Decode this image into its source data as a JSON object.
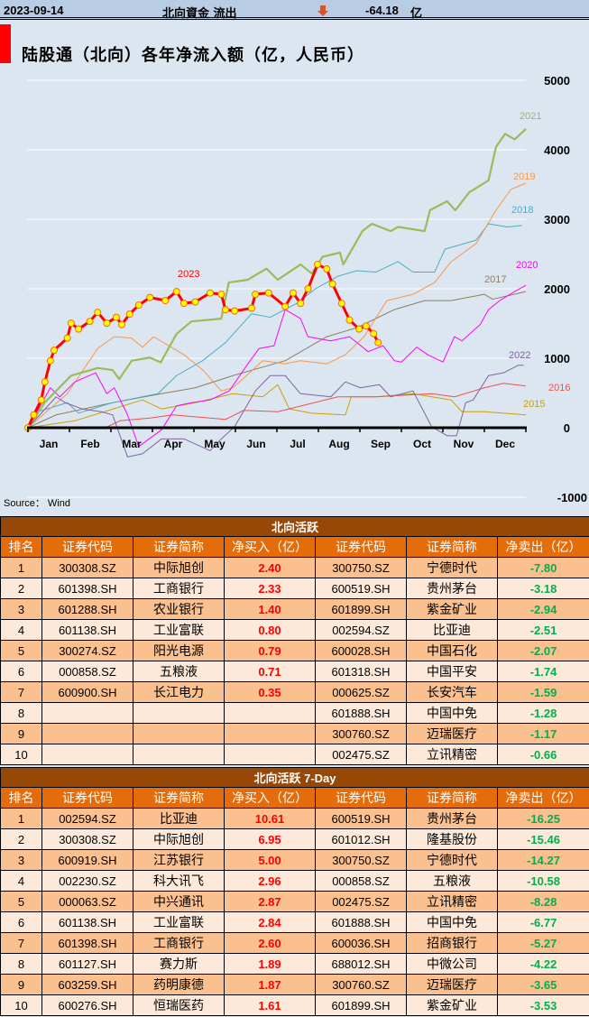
{
  "header": {
    "date": "2023-09-14",
    "label": "北向資金 流出",
    "value": "-64.18",
    "unit": "亿",
    "direction_icon": "down-arrow-icon"
  },
  "chart_data": {
    "type": "line",
    "title": "陆股通（北向）各年净流入额（亿，人民币）",
    "source": "Source： Wind",
    "ylim": [
      -1000,
      5000
    ],
    "yticks": [
      "5000",
      "4000",
      "3000",
      "2000",
      "1000",
      "0",
      "-1000"
    ],
    "ytick_values": [
      5000,
      4000,
      3000,
      2000,
      1000,
      0,
      -1000
    ],
    "xticks": [
      "Jan",
      "Feb",
      "Mar",
      "Apr",
      "May",
      "Jun",
      "Jul",
      "Aug",
      "Sep",
      "Oct",
      "Nov",
      "Dec"
    ],
    "xunit": "months elapsed (0-12)",
    "grid": true,
    "series": [
      {
        "name": "2015",
        "color": "#c9a100",
        "points": [
          [
            0,
            0
          ],
          [
            1.13,
            100
          ],
          [
            2.76,
            400
          ],
          [
            3.22,
            270
          ],
          [
            4.03,
            360
          ],
          [
            4.94,
            490
          ],
          [
            5.66,
            445
          ],
          [
            6.02,
            620
          ],
          [
            6.3,
            270
          ],
          [
            6.84,
            210
          ],
          [
            7.65,
            185
          ],
          [
            7.79,
            445
          ],
          [
            8.38,
            445
          ],
          [
            9.28,
            490
          ],
          [
            10.2,
            400
          ],
          [
            10.46,
            230
          ],
          [
            11,
            230
          ],
          [
            12,
            185
          ]
        ]
      },
      {
        "name": "2016",
        "color": "#f05050",
        "points": [
          [
            0,
            0
          ],
          [
            1.86,
            0
          ],
          [
            2.22,
            100
          ],
          [
            2.94,
            140
          ],
          [
            3.49,
            185
          ],
          [
            4.76,
            120
          ],
          [
            5.2,
            250
          ],
          [
            6.02,
            230
          ],
          [
            7.47,
            445
          ],
          [
            8.38,
            445
          ],
          [
            9.73,
            490
          ],
          [
            10.28,
            445
          ],
          [
            11,
            575
          ],
          [
            11.46,
            640
          ],
          [
            12,
            600
          ]
        ]
      },
      {
        "name": "2017",
        "color": "#8c7f5c",
        "points": [
          [
            0,
            0
          ],
          [
            0.68,
            185
          ],
          [
            2.04,
            360
          ],
          [
            3.22,
            490
          ],
          [
            4.03,
            575
          ],
          [
            4.94,
            750
          ],
          [
            6.2,
            965
          ],
          [
            7.2,
            1310
          ],
          [
            7.93,
            1440
          ],
          [
            8.83,
            1700
          ],
          [
            9.56,
            1830
          ],
          [
            10.2,
            1830
          ],
          [
            11,
            1920
          ],
          [
            11.2,
            1850
          ],
          [
            12,
            1960
          ]
        ]
      },
      {
        "name": "2018",
        "color": "#4bacc6",
        "points": [
          [
            0,
            0
          ],
          [
            0.23,
            230
          ],
          [
            0.95,
            360
          ],
          [
            1.22,
            210
          ],
          [
            2.04,
            360
          ],
          [
            3.13,
            490
          ],
          [
            3.58,
            750
          ],
          [
            4.21,
            965
          ],
          [
            4.76,
            1225
          ],
          [
            5.39,
            1640
          ],
          [
            5.84,
            1590
          ],
          [
            6.48,
            1790
          ],
          [
            6.93,
            2000
          ],
          [
            7.47,
            2180
          ],
          [
            7.93,
            2260
          ],
          [
            8.38,
            2240
          ],
          [
            8.92,
            2390
          ],
          [
            9.28,
            2240
          ],
          [
            9.8,
            2240
          ],
          [
            10.05,
            2570
          ],
          [
            10.8,
            2700
          ],
          [
            11.1,
            2935
          ],
          [
            11.55,
            2890
          ],
          [
            11.9,
            2910
          ]
        ]
      },
      {
        "name": "2019",
        "color": "#f79646",
        "points": [
          [
            0,
            0
          ],
          [
            0.95,
            490
          ],
          [
            1.68,
            1140
          ],
          [
            2.08,
            1310
          ],
          [
            2.49,
            1290
          ],
          [
            2.76,
            1160
          ],
          [
            3.03,
            1310
          ],
          [
            3.76,
            1050
          ],
          [
            4.21,
            835
          ],
          [
            4.66,
            530
          ],
          [
            4.94,
            575
          ],
          [
            5.66,
            965
          ],
          [
            6.2,
            920
          ],
          [
            6.57,
            965
          ],
          [
            7.2,
            920
          ],
          [
            7.65,
            1050
          ],
          [
            8.1,
            1310
          ],
          [
            8.65,
            1830
          ],
          [
            9.28,
            1920
          ],
          [
            9.8,
            2090
          ],
          [
            10.2,
            2390
          ],
          [
            10.8,
            2650
          ],
          [
            11.28,
            3130
          ],
          [
            11.64,
            3430
          ],
          [
            12,
            3520
          ]
        ]
      },
      {
        "name": "2020",
        "color": "#ff00ff",
        "points": [
          [
            0,
            0
          ],
          [
            0.54,
            575
          ],
          [
            0.77,
            445
          ],
          [
            1.13,
            660
          ],
          [
            1.63,
            790
          ],
          [
            1.9,
            490
          ],
          [
            2.08,
            575
          ],
          [
            2.4,
            185
          ],
          [
            2.67,
            -270
          ],
          [
            3.22,
            -30
          ],
          [
            3.58,
            315
          ],
          [
            3.94,
            360
          ],
          [
            4.39,
            400
          ],
          [
            4.85,
            530
          ],
          [
            5.3,
            920
          ],
          [
            5.57,
            1140
          ],
          [
            5.93,
            1180
          ],
          [
            6.2,
            1700
          ],
          [
            6.57,
            1570
          ],
          [
            6.75,
            1310
          ],
          [
            7.3,
            1250
          ],
          [
            7.75,
            1310
          ],
          [
            8.2,
            1095
          ],
          [
            8.56,
            1180
          ],
          [
            8.83,
            965
          ],
          [
            9,
            945
          ],
          [
            9.37,
            1160
          ],
          [
            9.64,
            1050
          ],
          [
            10,
            945
          ],
          [
            10.28,
            1310
          ],
          [
            10.46,
            1250
          ],
          [
            10.9,
            1485
          ],
          [
            11.1,
            1700
          ],
          [
            11.37,
            1830
          ],
          [
            11.73,
            1960
          ],
          [
            12,
            2050
          ]
        ]
      },
      {
        "name": "2021",
        "color": "#9bbb59",
        "width": 2.2,
        "points": [
          [
            0,
            0
          ],
          [
            0.4,
            360
          ],
          [
            1.04,
            750
          ],
          [
            1.68,
            860
          ],
          [
            2.04,
            830
          ],
          [
            2.2,
            700
          ],
          [
            2.5,
            965
          ],
          [
            2.94,
            1010
          ],
          [
            3.2,
            940
          ],
          [
            3.58,
            1350
          ],
          [
            3.94,
            1530
          ],
          [
            4.66,
            1570
          ],
          [
            4.84,
            2090
          ],
          [
            5.3,
            2130
          ],
          [
            5.75,
            2290
          ],
          [
            6.02,
            2130
          ],
          [
            6.57,
            2350
          ],
          [
            6.84,
            2220
          ],
          [
            7.1,
            2460
          ],
          [
            7.52,
            2520
          ],
          [
            7.6,
            2350
          ],
          [
            8.06,
            2830
          ],
          [
            8.29,
            2935
          ],
          [
            8.74,
            2830
          ],
          [
            8.92,
            2890
          ],
          [
            9.56,
            2830
          ],
          [
            9.69,
            3130
          ],
          [
            10.1,
            3260
          ],
          [
            10.3,
            3130
          ],
          [
            10.64,
            3390
          ],
          [
            11.1,
            3560
          ],
          [
            11.28,
            4040
          ],
          [
            11.5,
            4230
          ],
          [
            11.73,
            4150
          ],
          [
            12,
            4300
          ]
        ]
      },
      {
        "name": "2022",
        "color": "#7f64a2",
        "points": [
          [
            0,
            0
          ],
          [
            0.68,
            445
          ],
          [
            0.9,
            360
          ],
          [
            1.31,
            270
          ],
          [
            1.77,
            230
          ],
          [
            2.04,
            185
          ],
          [
            2.4,
            -420
          ],
          [
            2.76,
            -375
          ],
          [
            3.22,
            -160
          ],
          [
            3.76,
            -160
          ],
          [
            4.39,
            -330
          ],
          [
            4.66,
            -160
          ],
          [
            4.98,
            15
          ],
          [
            5.48,
            530
          ],
          [
            5.84,
            750
          ],
          [
            6.2,
            750
          ],
          [
            6.57,
            490
          ],
          [
            7.3,
            445
          ],
          [
            7.65,
            660
          ],
          [
            8.01,
            575
          ],
          [
            8.47,
            620
          ],
          [
            8.74,
            445
          ],
          [
            9.28,
            530
          ],
          [
            9.73,
            15
          ],
          [
            10.1,
            -115
          ],
          [
            10.33,
            -115
          ],
          [
            10.55,
            360
          ],
          [
            10.73,
            400
          ],
          [
            11.1,
            750
          ],
          [
            11.46,
            790
          ],
          [
            11.82,
            900
          ],
          [
            11.95,
            900
          ]
        ]
      },
      {
        "name": "2023",
        "color": "#ff0000",
        "width": 3,
        "markers": true,
        "points": [
          [
            0,
            0
          ],
          [
            0.14,
            185
          ],
          [
            0.32,
            400
          ],
          [
            0.41,
            660
          ],
          [
            0.54,
            965
          ],
          [
            0.63,
            1115
          ],
          [
            0.95,
            1290
          ],
          [
            1.04,
            1505
          ],
          [
            1.22,
            1420
          ],
          [
            1.49,
            1530
          ],
          [
            1.68,
            1660
          ],
          [
            1.9,
            1505
          ],
          [
            2.13,
            1590
          ],
          [
            2.26,
            1485
          ],
          [
            2.45,
            1635
          ],
          [
            2.67,
            1765
          ],
          [
            2.94,
            1875
          ],
          [
            3.31,
            1830
          ],
          [
            3.58,
            1960
          ],
          [
            3.76,
            1790
          ],
          [
            4.03,
            1810
          ],
          [
            4.39,
            1940
          ],
          [
            4.66,
            1920
          ],
          [
            4.76,
            1700
          ],
          [
            4.98,
            1680
          ],
          [
            5.39,
            1720
          ],
          [
            5.48,
            1920
          ],
          [
            5.8,
            1940
          ],
          [
            6.2,
            1745
          ],
          [
            6.39,
            1940
          ],
          [
            6.57,
            1790
          ],
          [
            6.75,
            2000
          ],
          [
            6.98,
            2350
          ],
          [
            7.2,
            2285
          ],
          [
            7.34,
            2070
          ],
          [
            7.56,
            1790
          ],
          [
            7.75,
            1550
          ],
          [
            7.98,
            1420
          ],
          [
            8.15,
            1465
          ],
          [
            8.33,
            1355
          ],
          [
            8.44,
            1225
          ]
        ]
      }
    ]
  },
  "table1": {
    "title": "北向活跃",
    "headers": [
      "排名",
      "证券代码",
      "证券简称",
      "净买入（亿）",
      "证券代码",
      "证券简称",
      "净卖出（亿）"
    ],
    "rows": [
      [
        "1",
        "300308.SZ",
        "中际旭创",
        "2.40",
        "300750.SZ",
        "宁德时代",
        "-7.80"
      ],
      [
        "2",
        "601398.SH",
        "工商银行",
        "2.33",
        "600519.SH",
        "贵州茅台",
        "-3.18"
      ],
      [
        "3",
        "601288.SH",
        "农业银行",
        "1.40",
        "601899.SH",
        "紫金矿业",
        "-2.94"
      ],
      [
        "4",
        "601138.SH",
        "工业富联",
        "0.80",
        "002594.SZ",
        "比亚迪",
        "-2.51"
      ],
      [
        "5",
        "300274.SZ",
        "阳光电源",
        "0.79",
        "600028.SH",
        "中国石化",
        "-2.07"
      ],
      [
        "6",
        "000858.SZ",
        "五粮液",
        "0.71",
        "601318.SH",
        "中国平安",
        "-1.74"
      ],
      [
        "7",
        "600900.SH",
        "长江电力",
        "0.35",
        "000625.SZ",
        "长安汽车",
        "-1.59"
      ],
      [
        "8",
        "",
        "",
        "",
        "601888.SH",
        "中国中免",
        "-1.28"
      ],
      [
        "9",
        "",
        "",
        "",
        "300760.SZ",
        "迈瑞医疗",
        "-1.17"
      ],
      [
        "10",
        "",
        "",
        "",
        "002475.SZ",
        "立讯精密",
        "-0.66"
      ]
    ]
  },
  "table2": {
    "title": "北向活跃 7-Day",
    "headers": [
      "排名",
      "证券代码",
      "证券简称",
      "净买入（亿）",
      "证券代码",
      "证券简称",
      "净卖出（亿）"
    ],
    "rows": [
      [
        "1",
        "002594.SZ",
        "比亚迪",
        "10.61",
        "600519.SH",
        "贵州茅台",
        "-16.25"
      ],
      [
        "2",
        "300308.SZ",
        "中际旭创",
        "6.95",
        "601012.SH",
        "隆基股份",
        "-15.46"
      ],
      [
        "3",
        "600919.SH",
        "江苏银行",
        "5.00",
        "300750.SZ",
        "宁德时代",
        "-14.27"
      ],
      [
        "4",
        "002230.SZ",
        "科大讯飞",
        "2.96",
        "000858.SZ",
        "五粮液",
        "-10.58"
      ],
      [
        "5",
        "000063.SZ",
        "中兴通讯",
        "2.87",
        "002475.SZ",
        "立讯精密",
        "-8.28"
      ],
      [
        "6",
        "601138.SH",
        "工业富联",
        "2.84",
        "601888.SH",
        "中国中免",
        "-6.77"
      ],
      [
        "7",
        "601398.SH",
        "工商银行",
        "2.60",
        "600036.SH",
        "招商银行",
        "-5.27"
      ],
      [
        "8",
        "601127.SH",
        "赛力斯",
        "1.89",
        "688012.SH",
        "中微公司",
        "-4.22"
      ],
      [
        "9",
        "603259.SH",
        "药明康德",
        "1.87",
        "300760.SZ",
        "迈瑞医疗",
        "-3.65"
      ],
      [
        "10",
        "600276.SH",
        "恒瑞医药",
        "1.61",
        "601899.SH",
        "紫金矿业",
        "-3.53"
      ]
    ]
  }
}
